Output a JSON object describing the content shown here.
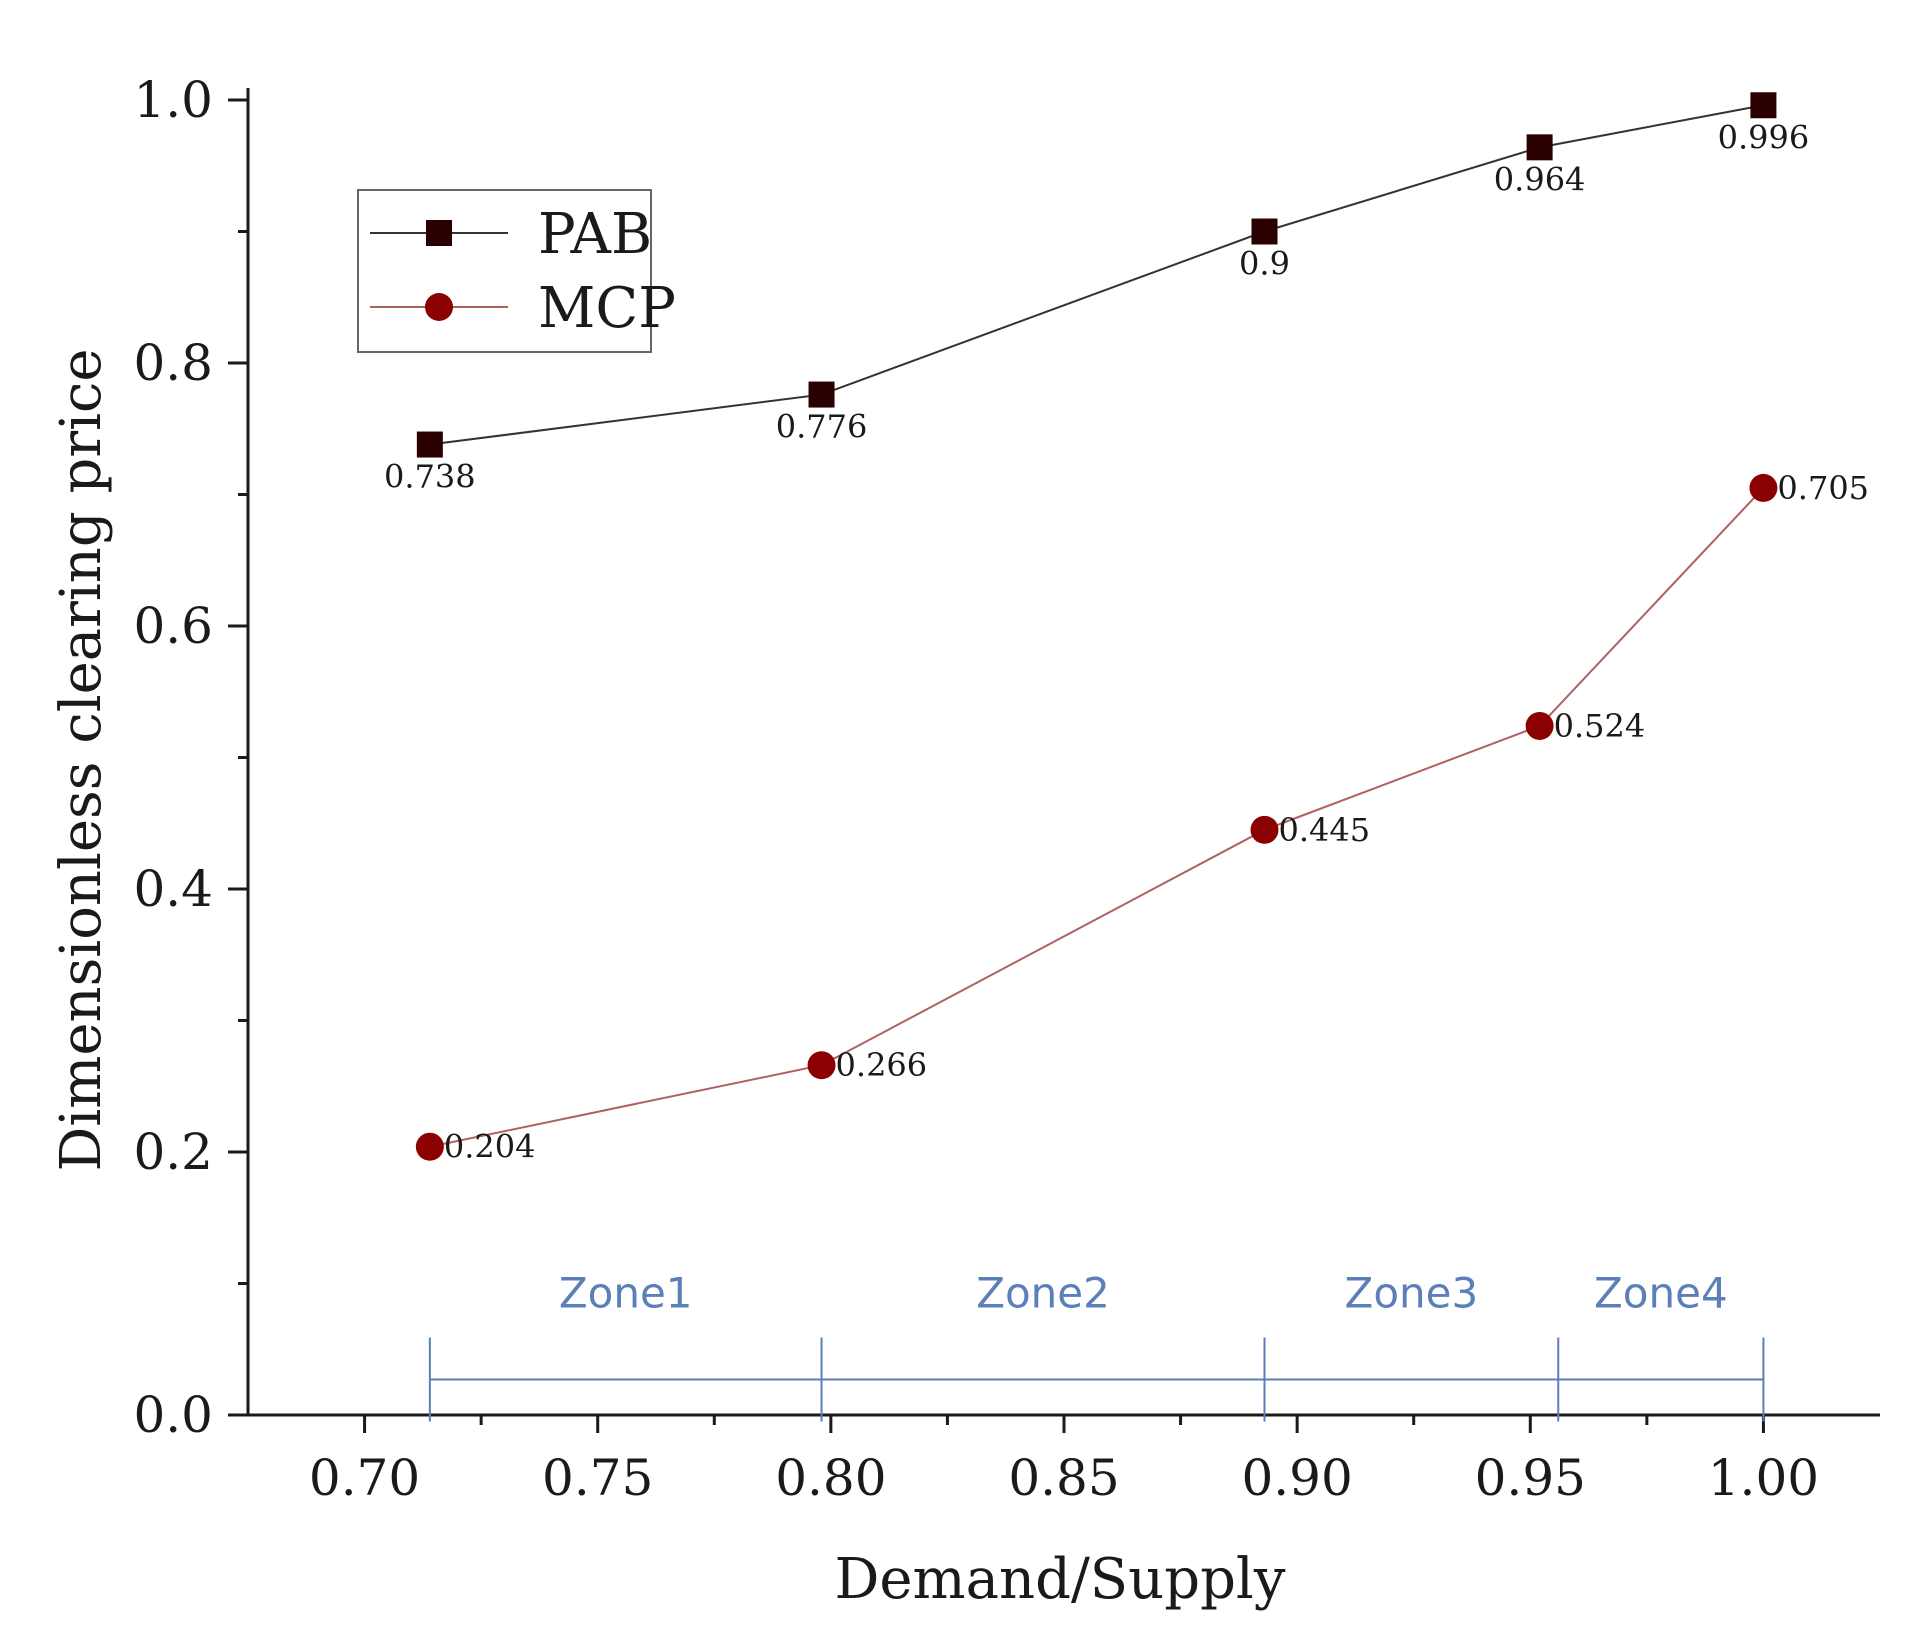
{
  "chart_data": {
    "type": "line",
    "title": "",
    "xlabel": "Demand/Supply",
    "ylabel": "Dimensionless clearing price",
    "xlim": [
      0.675,
      1.025
    ],
    "ylim": [
      0.0,
      1.0
    ],
    "xticks": [
      {
        "value": 0.7,
        "label": "0.70"
      },
      {
        "value": 0.75,
        "label": "0.75"
      },
      {
        "value": 0.8,
        "label": "0.80"
      },
      {
        "value": 0.85,
        "label": "0.85"
      },
      {
        "value": 0.9,
        "label": "0.90"
      },
      {
        "value": 0.95,
        "label": "0.95"
      },
      {
        "value": 1.0,
        "label": "1.00"
      }
    ],
    "yticks": [
      {
        "value": 0.0,
        "label": "0.0"
      },
      {
        "value": 0.2,
        "label": "0.2"
      },
      {
        "value": 0.4,
        "label": "0.4"
      },
      {
        "value": 0.6,
        "label": "0.6"
      },
      {
        "value": 0.8,
        "label": "0.8"
      },
      {
        "value": 1.0,
        "label": "1.0"
      }
    ],
    "legend_position": "top-left",
    "series": [
      {
        "name": "PAB",
        "marker": "square",
        "color": "#2b0000",
        "line_color": "#333333",
        "label_position": "below",
        "x": [
          0.714,
          0.798,
          0.893,
          0.952,
          1.0
        ],
        "y": [
          0.738,
          0.776,
          0.9,
          0.964,
          0.996
        ],
        "labels": [
          "0.738",
          "0.776",
          "0.9",
          "0.964",
          "0.996"
        ]
      },
      {
        "name": "MCP",
        "marker": "circle",
        "color": "#8b0000",
        "line_color": "#b06060",
        "label_position": "right",
        "x": [
          0.714,
          0.798,
          0.893,
          0.952,
          1.0
        ],
        "y": [
          0.204,
          0.266,
          0.445,
          0.524,
          0.705
        ],
        "labels": [
          "0.204",
          "0.266",
          "0.445",
          "0.524",
          "0.705"
        ]
      }
    ],
    "zones": {
      "color": "#5b7fb8",
      "y": 0.027,
      "boundaries": [
        0.714,
        0.798,
        0.893,
        0.956,
        1.0
      ],
      "labels": [
        "Zone1",
        "Zone2",
        "Zone3",
        "Zone4"
      ]
    }
  }
}
